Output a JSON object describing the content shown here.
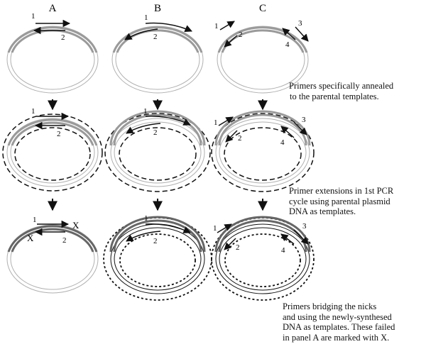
{
  "panels": [
    {
      "id": "A",
      "label": "A"
    },
    {
      "id": "B",
      "label": "B"
    },
    {
      "id": "C",
      "label": "C"
    }
  ],
  "primer_labels": [
    "1",
    "2",
    "3",
    "4"
  ],
  "failure_mark": "X",
  "captions": {
    "row1": [
      "Primers specifically annealed",
      "to the parental templates."
    ],
    "row2": [
      "Primer extensions in 1st PCR",
      "cycle using parental plasmid",
      "DNA as templates."
    ],
    "row3": [
      "Primers bridging the nicks",
      "and using the newly-synthesed",
      "DNA as templates. These failed",
      "in panel A are marked with X."
    ]
  },
  "colors": {
    "ink": "#111111",
    "parental_strand": "#9a9a9a",
    "new_strand_dark": "#666666"
  }
}
